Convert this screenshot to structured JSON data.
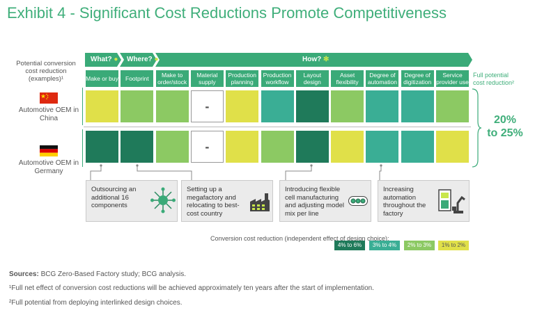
{
  "title": "Exhibit 4 - Significant Cost Reductions Promote Competitiveness",
  "row_header": "Potential conversion cost reduction (examples)¹",
  "full_potential": {
    "line1": "Full potential",
    "line2": "cost reduction²",
    "value_line1": "20%",
    "value_line2": "to 25%"
  },
  "stages": [
    {
      "label": "What?",
      "icon": "person-question-icon"
    },
    {
      "label": "Where?",
      "icon": "location-pin-icon"
    },
    {
      "label": "How?",
      "icon": "gears-icon"
    }
  ],
  "chart_data": {
    "type": "heatmap",
    "columns": [
      "Make or buy",
      "Footprint",
      "Make to order/stock",
      "Material supply",
      "Production planning",
      "Production workflow",
      "Layout design",
      "Asset flexibility",
      "Degree of automation",
      "Degree of digitization",
      "Service provider use"
    ],
    "rows": [
      {
        "name": "Automotive OEM in China",
        "flag": "china-flag-icon",
        "values": [
          "1% to 2%",
          "2% to 3%",
          "2% to 3%",
          "-",
          "1% to 2%",
          "3% to 4%",
          "4% to 6%",
          "2% to 3%",
          "3% to 4%",
          "3% to 4%",
          "2% to 3%"
        ]
      },
      {
        "name": "Automotive OEM in Germany",
        "flag": "germany-flag-icon",
        "values": [
          "4% to 6%",
          "4% to 6%",
          "2% to 3%",
          "-",
          "1% to 2%",
          "2% to 3%",
          "4% to 6%",
          "1% to 2%",
          "3% to 4%",
          "3% to 4%",
          "1% to 2%"
        ]
      }
    ],
    "legend_title": "Conversion cost reduction (independent effect of design choice):",
    "legend": [
      {
        "label": "4% to 6%",
        "color": "#1f7a5a"
      },
      {
        "label": "3% to 4%",
        "color": "#3aae95"
      },
      {
        "label": "2% to 3%",
        "color": "#8cc963"
      },
      {
        "label": "1% to 2%",
        "color": "#e0e049"
      }
    ],
    "annotations": [
      {
        "text": "Outsourcing an additional 16 components",
        "icon": "network-hub-icon"
      },
      {
        "text": "Setting up a megafactory and relocating to best-cost country",
        "icon": "factory-icon"
      },
      {
        "text": "Introducing flexible cell manufacturing and adjusting model mix per line",
        "icon": "conveyor-icon"
      },
      {
        "text": "Increasing automation throughout the factory",
        "icon": "robot-arm-icon"
      }
    ]
  },
  "footnotes": {
    "sources_label": "Sources:",
    "sources_text": " BCG Zero-Based Factory study; BCG analysis.",
    "note1": "¹Full net effect of conversion cost reductions will be achieved approximately ten years after the start of implementation.",
    "note2": "²Full potential from deploying interlinked design choices."
  }
}
